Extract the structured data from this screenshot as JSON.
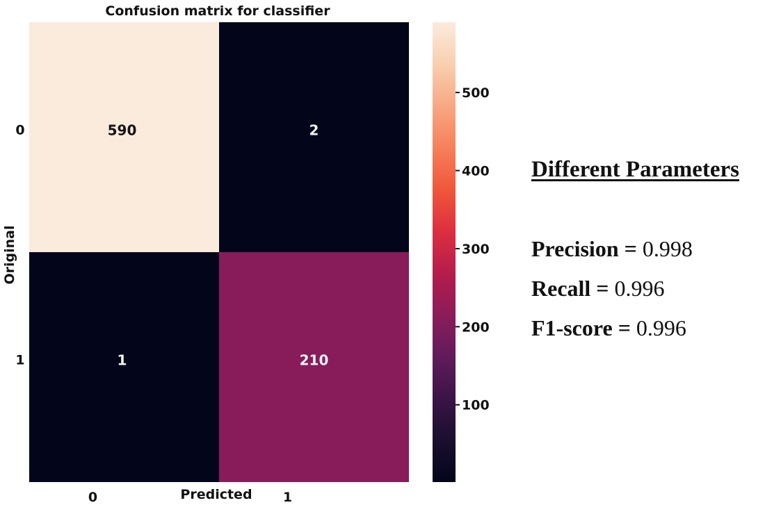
{
  "chart_data": {
    "type": "heatmap",
    "title": "Confusion matrix for classifier",
    "xlabel": "Predicted",
    "ylabel": "Original",
    "x_categories": [
      "0",
      "1"
    ],
    "y_categories": [
      "0",
      "1"
    ],
    "matrix": [
      [
        590,
        2
      ],
      [
        1,
        210
      ]
    ],
    "colorbar": {
      "ticks": [
        100,
        200,
        300,
        400,
        500
      ],
      "min": 1,
      "max": 590,
      "colormap": "rocket",
      "colors": [
        "#03051a",
        "#1a0f2e",
        "#3b1446",
        "#611b5b",
        "#8c1c5a",
        "#b61c4c",
        "#dc2f3f",
        "#f0573b",
        "#f6805b",
        "#f7a883",
        "#f9cfb0",
        "#faebdd"
      ]
    }
  },
  "parameters": {
    "heading": "Different Parameters",
    "items": [
      {
        "name": "Precision",
        "eq": "=",
        "value": "0.998"
      },
      {
        "name": "Recall",
        "eq": "=",
        "value": "0.996"
      },
      {
        "name": "F1-score",
        "eq": "=",
        "value": "0.996"
      }
    ]
  }
}
